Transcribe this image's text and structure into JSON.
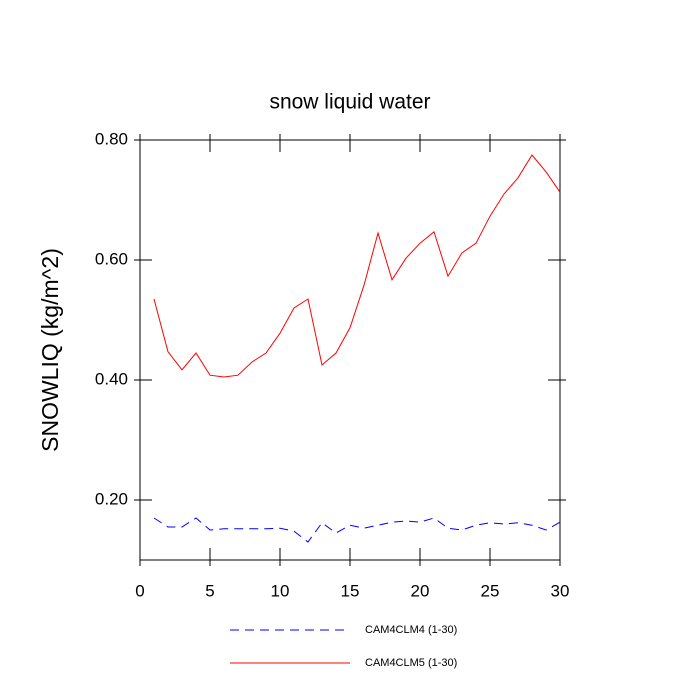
{
  "chart_data": {
    "type": "line",
    "title": "snow liquid water",
    "y_label": "SNOWLIQ  (kg/m^2)",
    "x": [
      1,
      2,
      3,
      4,
      5,
      6,
      7,
      8,
      9,
      10,
      11,
      12,
      13,
      14,
      15,
      16,
      17,
      18,
      19,
      20,
      21,
      22,
      23,
      24,
      25,
      26,
      27,
      28,
      29,
      30
    ],
    "series": [
      {
        "name": "CAM4CLM4 (1-30)",
        "color": "#0000ff",
        "dash": true,
        "values": [
          0.17,
          0.155,
          0.155,
          0.17,
          0.15,
          0.152,
          0.152,
          0.152,
          0.152,
          0.153,
          0.148,
          0.13,
          0.162,
          0.145,
          0.158,
          0.153,
          0.158,
          0.163,
          0.165,
          0.163,
          0.17,
          0.153,
          0.15,
          0.158,
          0.162,
          0.16,
          0.162,
          0.158,
          0.15,
          0.163
        ]
      },
      {
        "name": "CAM4CLM5 (1-30)",
        "color": "#ff0000",
        "dash": false,
        "values": [
          0.535,
          0.447,
          0.417,
          0.445,
          0.408,
          0.405,
          0.408,
          0.43,
          0.445,
          0.478,
          0.52,
          0.535,
          0.425,
          0.445,
          0.487,
          0.558,
          0.645,
          0.567,
          0.603,
          0.628,
          0.647,
          0.573,
          0.612,
          0.628,
          0.673,
          0.71,
          0.737,
          0.775,
          0.747,
          0.713
        ]
      }
    ],
    "xlim": [
      0,
      30
    ],
    "xticks": [
      0,
      5,
      10,
      15,
      20,
      25,
      30
    ],
    "ylim": [
      0.1,
      0.8
    ],
    "yticks": [
      {
        "value": 0.2,
        "label": "0.20"
      },
      {
        "value": 0.4,
        "label": "0.40"
      },
      {
        "value": 0.6,
        "label": "0.60"
      },
      {
        "value": 0.8,
        "label": "0.80"
      }
    ]
  }
}
